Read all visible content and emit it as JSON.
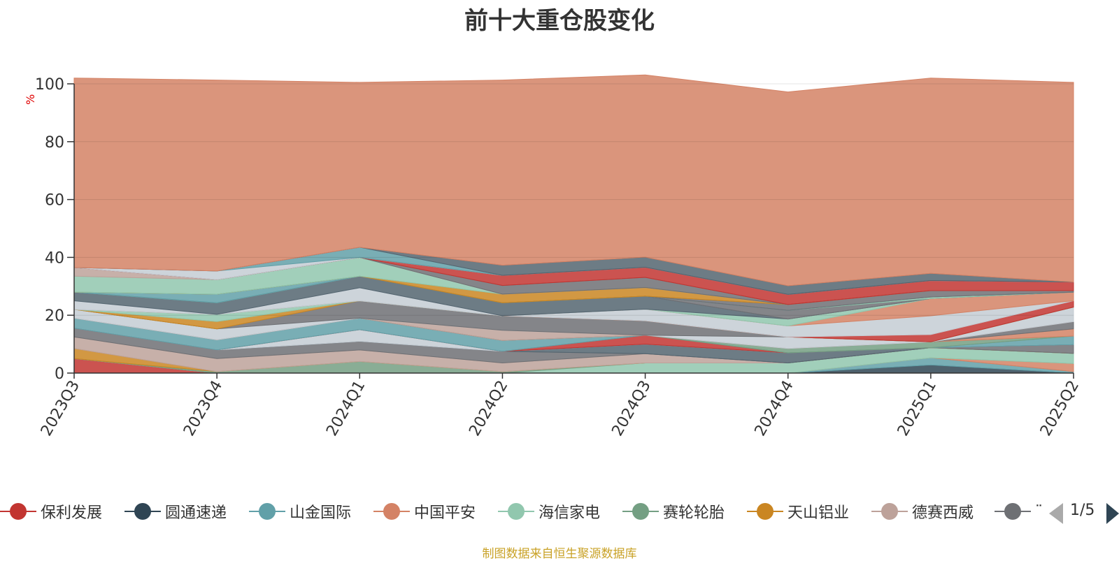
{
  "title": "前十大重仓股变化",
  "unit": "%",
  "footer": "制图数据来自恒生聚源数据库",
  "legend_page": "1/5",
  "chart_data": {
    "type": "area",
    "stacked": true,
    "categories": [
      "2023Q3",
      "2023Q4",
      "2024Q1",
      "2024Q2",
      "2024Q3",
      "2024Q4",
      "2025Q1",
      "2025Q2"
    ],
    "ylim": [
      0,
      100
    ],
    "yticks": [
      0,
      20,
      40,
      60,
      80,
      100
    ],
    "grid": true,
    "legend_position": "bottom",
    "series": [
      {
        "name": "保利发展",
        "color": "#c23531",
        "values": [
          5,
          0,
          0,
          0,
          0,
          0,
          0,
          0
        ]
      },
      {
        "name": "圆通速递",
        "color": "#2f4554",
        "values": [
          0,
          0,
          0,
          0,
          0,
          0,
          2.8,
          0
        ]
      },
      {
        "name": "山金国际",
        "color": "#61a0a8",
        "values": [
          0,
          0,
          0,
          0,
          0,
          0,
          2.5,
          0.5
        ]
      },
      {
        "name": "中国平安",
        "color": "#d48265",
        "values": [
          0,
          0,
          0,
          0,
          0,
          0,
          0,
          2.8
        ]
      },
      {
        "name": "海信家电",
        "color": "#91c7ae",
        "values": [
          0,
          0,
          0,
          0,
          3.5,
          3.5,
          3.5,
          3.5
        ]
      },
      {
        "name": "赛轮轮胎",
        "color": "#749f83",
        "values": [
          0,
          0.5,
          4,
          0.5,
          0,
          0,
          0,
          0
        ]
      },
      {
        "name": "天山铝业",
        "color": "#ca8622",
        "values": [
          3.5,
          0,
          0,
          0,
          0,
          0,
          0,
          0
        ]
      },
      {
        "name": "德赛西威",
        "color": "#bda29a",
        "values": [
          4,
          4.5,
          4,
          3,
          3.2,
          0,
          0,
          0
        ]
      },
      {
        "name": "",
        "color": "#6e7074",
        "values": [
          3,
          3,
          3,
          4,
          0,
          0,
          0,
          3
        ]
      },
      {
        "name": "",
        "color": "#546570",
        "values": [
          0,
          0,
          0,
          0,
          3.3,
          3.5,
          0,
          0
        ]
      },
      {
        "name": "",
        "color": "#c4ccd3",
        "values": [
          0,
          0,
          4,
          0,
          0,
          0,
          0,
          0
        ]
      },
      {
        "name": "",
        "color": "#c23531",
        "values": [
          0,
          0,
          0,
          0,
          3.1,
          0,
          0,
          0
        ]
      },
      {
        "name": "",
        "color": "#61a0a8",
        "values": [
          3.5,
          3.5,
          4,
          3.8,
          0,
          0,
          0,
          3
        ]
      },
      {
        "name": "",
        "color": "#749f83",
        "values": [
          0,
          0,
          0,
          0,
          0,
          1.5,
          2,
          0
        ]
      },
      {
        "name": "",
        "color": "#d48265",
        "values": [
          0,
          0,
          0,
          0,
          0,
          0,
          0,
          2.5
        ]
      },
      {
        "name": "",
        "color": "#6e7074",
        "values": [
          0,
          0,
          0,
          0,
          0,
          0,
          0,
          2.5
        ]
      },
      {
        "name": "",
        "color": "#bda29a",
        "values": [
          0,
          0,
          0,
          3.5,
          0,
          0,
          0,
          0
        ]
      },
      {
        "name": "",
        "color": "#c4ccd3",
        "values": [
          3,
          3.8,
          0,
          0,
          0,
          4,
          0,
          5
        ]
      },
      {
        "name": "",
        "color": "#6e7074",
        "values": [
          0,
          0,
          6,
          5,
          5,
          0,
          0,
          0
        ]
      },
      {
        "name": "",
        "color": "#ca8622",
        "values": [
          0,
          2.5,
          0,
          0,
          0,
          0,
          0,
          0
        ]
      },
      {
        "name": "",
        "color": "#91c7ae",
        "values": [
          0,
          2.5,
          0,
          0,
          0,
          0,
          0,
          0
        ]
      },
      {
        "name": "",
        "color": "#c23531",
        "values": [
          0,
          0,
          0,
          0,
          0,
          0,
          2.5,
          2.2
        ]
      },
      {
        "name": "",
        "color": "#c4ccd3",
        "values": [
          0,
          0,
          0,
          0,
          4,
          3.8,
          6.5,
          0
        ]
      },
      {
        "name": "",
        "color": "#d48265",
        "values": [
          0,
          0,
          0,
          0,
          0,
          0,
          6,
          3
        ]
      },
      {
        "name": "",
        "color": "#91c7ae",
        "values": [
          0,
          0,
          0,
          0,
          0,
          2.4,
          0,
          0
        ]
      },
      {
        "name": "",
        "color": "#c4ccd3",
        "values": [
          3,
          0,
          4.5,
          0,
          0,
          0,
          0,
          0
        ]
      },
      {
        "name": "",
        "color": "#546570",
        "values": [
          3,
          4,
          4,
          4.5,
          4.5,
          0,
          0,
          0
        ]
      },
      {
        "name": "",
        "color": "#6e7074",
        "values": [
          0,
          0,
          0,
          0,
          0,
          3,
          0,
          0
        ]
      },
      {
        "name": "",
        "color": "#91c7ae",
        "values": [
          0,
          0,
          0,
          0,
          0,
          0,
          0.5,
          0
        ]
      },
      {
        "name": "",
        "color": "#61a0a8",
        "values": [
          0,
          3,
          0,
          0,
          0,
          0,
          0,
          0
        ]
      },
      {
        "name": "",
        "color": "#6e7074",
        "values": [
          0,
          0,
          0,
          0,
          0,
          2,
          2.2,
          0.5
        ]
      },
      {
        "name": "",
        "color": "#ca8622",
        "values": [
          0,
          0,
          0,
          3,
          3,
          0,
          0,
          0
        ]
      },
      {
        "name": "",
        "color": "#91c7ae",
        "values": [
          5.5,
          5,
          6.5,
          0,
          0,
          0,
          0,
          0
        ]
      },
      {
        "name": "",
        "color": "#bda29a",
        "values": [
          3,
          0,
          0,
          0,
          0,
          0,
          0,
          0
        ]
      },
      {
        "name": "",
        "color": "#6e7074",
        "values": [
          0,
          0,
          0,
          3,
          3.5,
          0,
          0,
          0
        ]
      },
      {
        "name": "",
        "color": "#c23531",
        "values": [
          0,
          0,
          0,
          3.5,
          3.5,
          3.5,
          3.5,
          3
        ]
      },
      {
        "name": "",
        "color": "#c4ccd3",
        "values": [
          0,
          3,
          0,
          0,
          0,
          0,
          0,
          0
        ]
      },
      {
        "name": "",
        "color": "#61a0a8",
        "values": [
          0,
          0,
          3.5,
          0,
          0,
          0,
          0,
          0
        ]
      },
      {
        "name": "",
        "color": "#546570",
        "values": [
          0,
          0,
          0,
          3.5,
          3.5,
          3,
          2.5,
          0
        ]
      },
      {
        "name": "",
        "color": "#d48265",
        "values": [
          65.5,
          66,
          57,
          64,
          63,
          67,
          67.5,
          69
        ]
      }
    ]
  },
  "legend": {
    "items": [
      {
        "name": "保利发展",
        "color": "#c23531"
      },
      {
        "name": "圆通速递",
        "color": "#2f4554"
      },
      {
        "name": "山金国际",
        "color": "#61a0a8"
      },
      {
        "name": "中国平安",
        "color": "#d48265"
      },
      {
        "name": "海信家电",
        "color": "#91c7ae"
      },
      {
        "name": "赛轮轮胎",
        "color": "#749f83"
      },
      {
        "name": "天山铝业",
        "color": "#ca8622"
      },
      {
        "name": "德赛西威",
        "color": "#bda29a"
      },
      {
        "name": "¨",
        "color": "#6e7074"
      }
    ]
  }
}
